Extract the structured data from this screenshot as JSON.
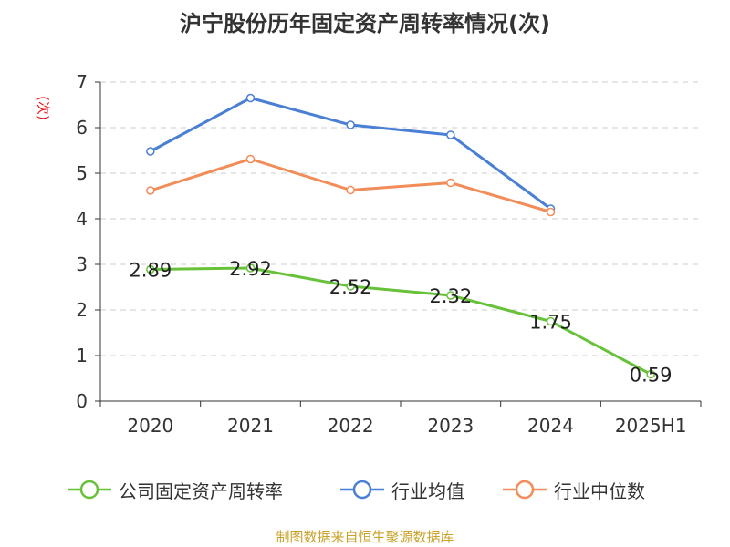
{
  "title": "沪宁股份历年固定资产周转率情况(次)",
  "y_unit": "(次)",
  "source": "制图数据来自恒生聚源数据库",
  "chart_data": {
    "type": "line",
    "title": "沪宁股份历年固定资产周转率情况(次)",
    "xlabel": "",
    "ylabel": "(次)",
    "categories": [
      "2020",
      "2021",
      "2022",
      "2023",
      "2024",
      "2025H1"
    ],
    "ylim": [
      0,
      7
    ],
    "yticks": [
      "0",
      "1",
      "2",
      "3",
      "4",
      "5",
      "6",
      "7"
    ],
    "grid": true,
    "legend_position": "bottom",
    "series": [
      {
        "name": "公司固定资产周转率",
        "color": "#67c23a",
        "values": [
          2.89,
          2.92,
          2.52,
          2.32,
          1.75,
          0.59
        ],
        "labels": [
          "2.89",
          "2.92",
          "2.52",
          "2.32",
          "1.75",
          "0.59"
        ]
      },
      {
        "name": "行业均值",
        "color": "#4a7fd6",
        "values": [
          5.48,
          6.65,
          6.06,
          5.84,
          4.22,
          null
        ]
      },
      {
        "name": "行业中位数",
        "color": "#f28c58",
        "values": [
          4.62,
          5.31,
          4.63,
          4.79,
          4.15,
          null
        ]
      }
    ]
  }
}
